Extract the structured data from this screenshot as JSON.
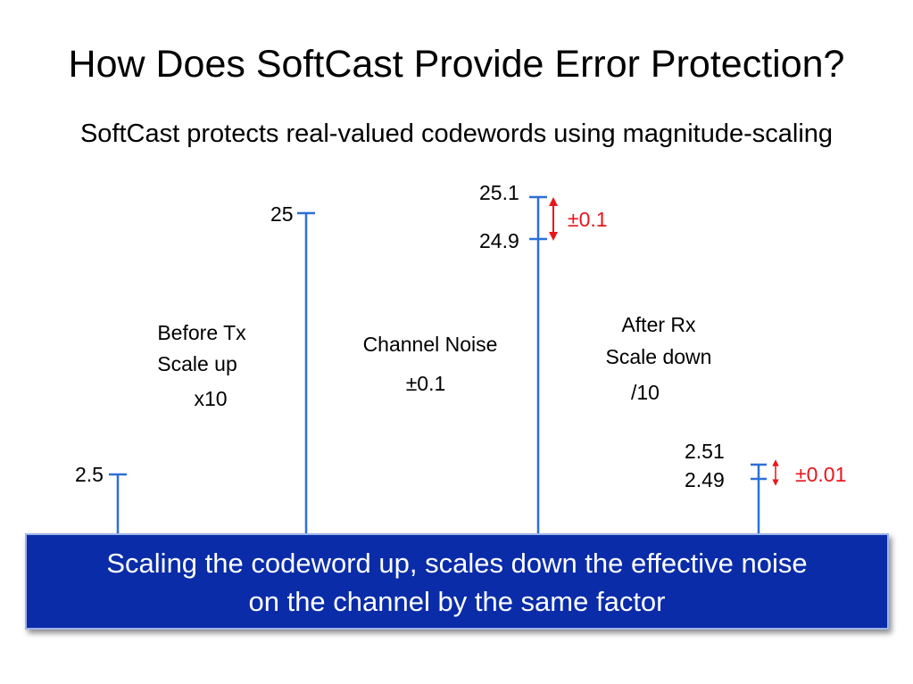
{
  "slide": {
    "title": "How Does SoftCast Provide Error Protection?",
    "subtitle": "SoftCast protects real-valued codewords using magnitude-scaling"
  },
  "diagram": {
    "bars": [
      {
        "id": "original",
        "value": 2.5,
        "label": "2.5"
      },
      {
        "id": "scaled",
        "value": 25,
        "label": "25"
      },
      {
        "id": "noisy",
        "upper": 25.1,
        "lower": 24.9,
        "upper_label": "25.1",
        "lower_label": "24.9",
        "noise_label": "±0.1"
      },
      {
        "id": "rescaled",
        "upper": 2.51,
        "lower": 2.49,
        "upper_label": "2.51",
        "lower_label": "2.49",
        "noise_label": "±0.01"
      }
    ],
    "steps": {
      "before_tx": {
        "line1": "Before Tx",
        "line2": "Scale up",
        "line3": "x10"
      },
      "channel": {
        "line1": "Channel Noise",
        "line2": "±0.1"
      },
      "after_rx": {
        "line1": "After Rx",
        "line2": "Scale down",
        "line3": "/10"
      }
    },
    "colors": {
      "bar": "#2e6fd8",
      "arrow": "#e8161b",
      "noise_text": "#e8161b"
    }
  },
  "banner": {
    "line1": "Scaling the codeword up, scales down the effective noise",
    "line2": "on the channel by the same factor",
    "background": "#0a2ca8"
  }
}
